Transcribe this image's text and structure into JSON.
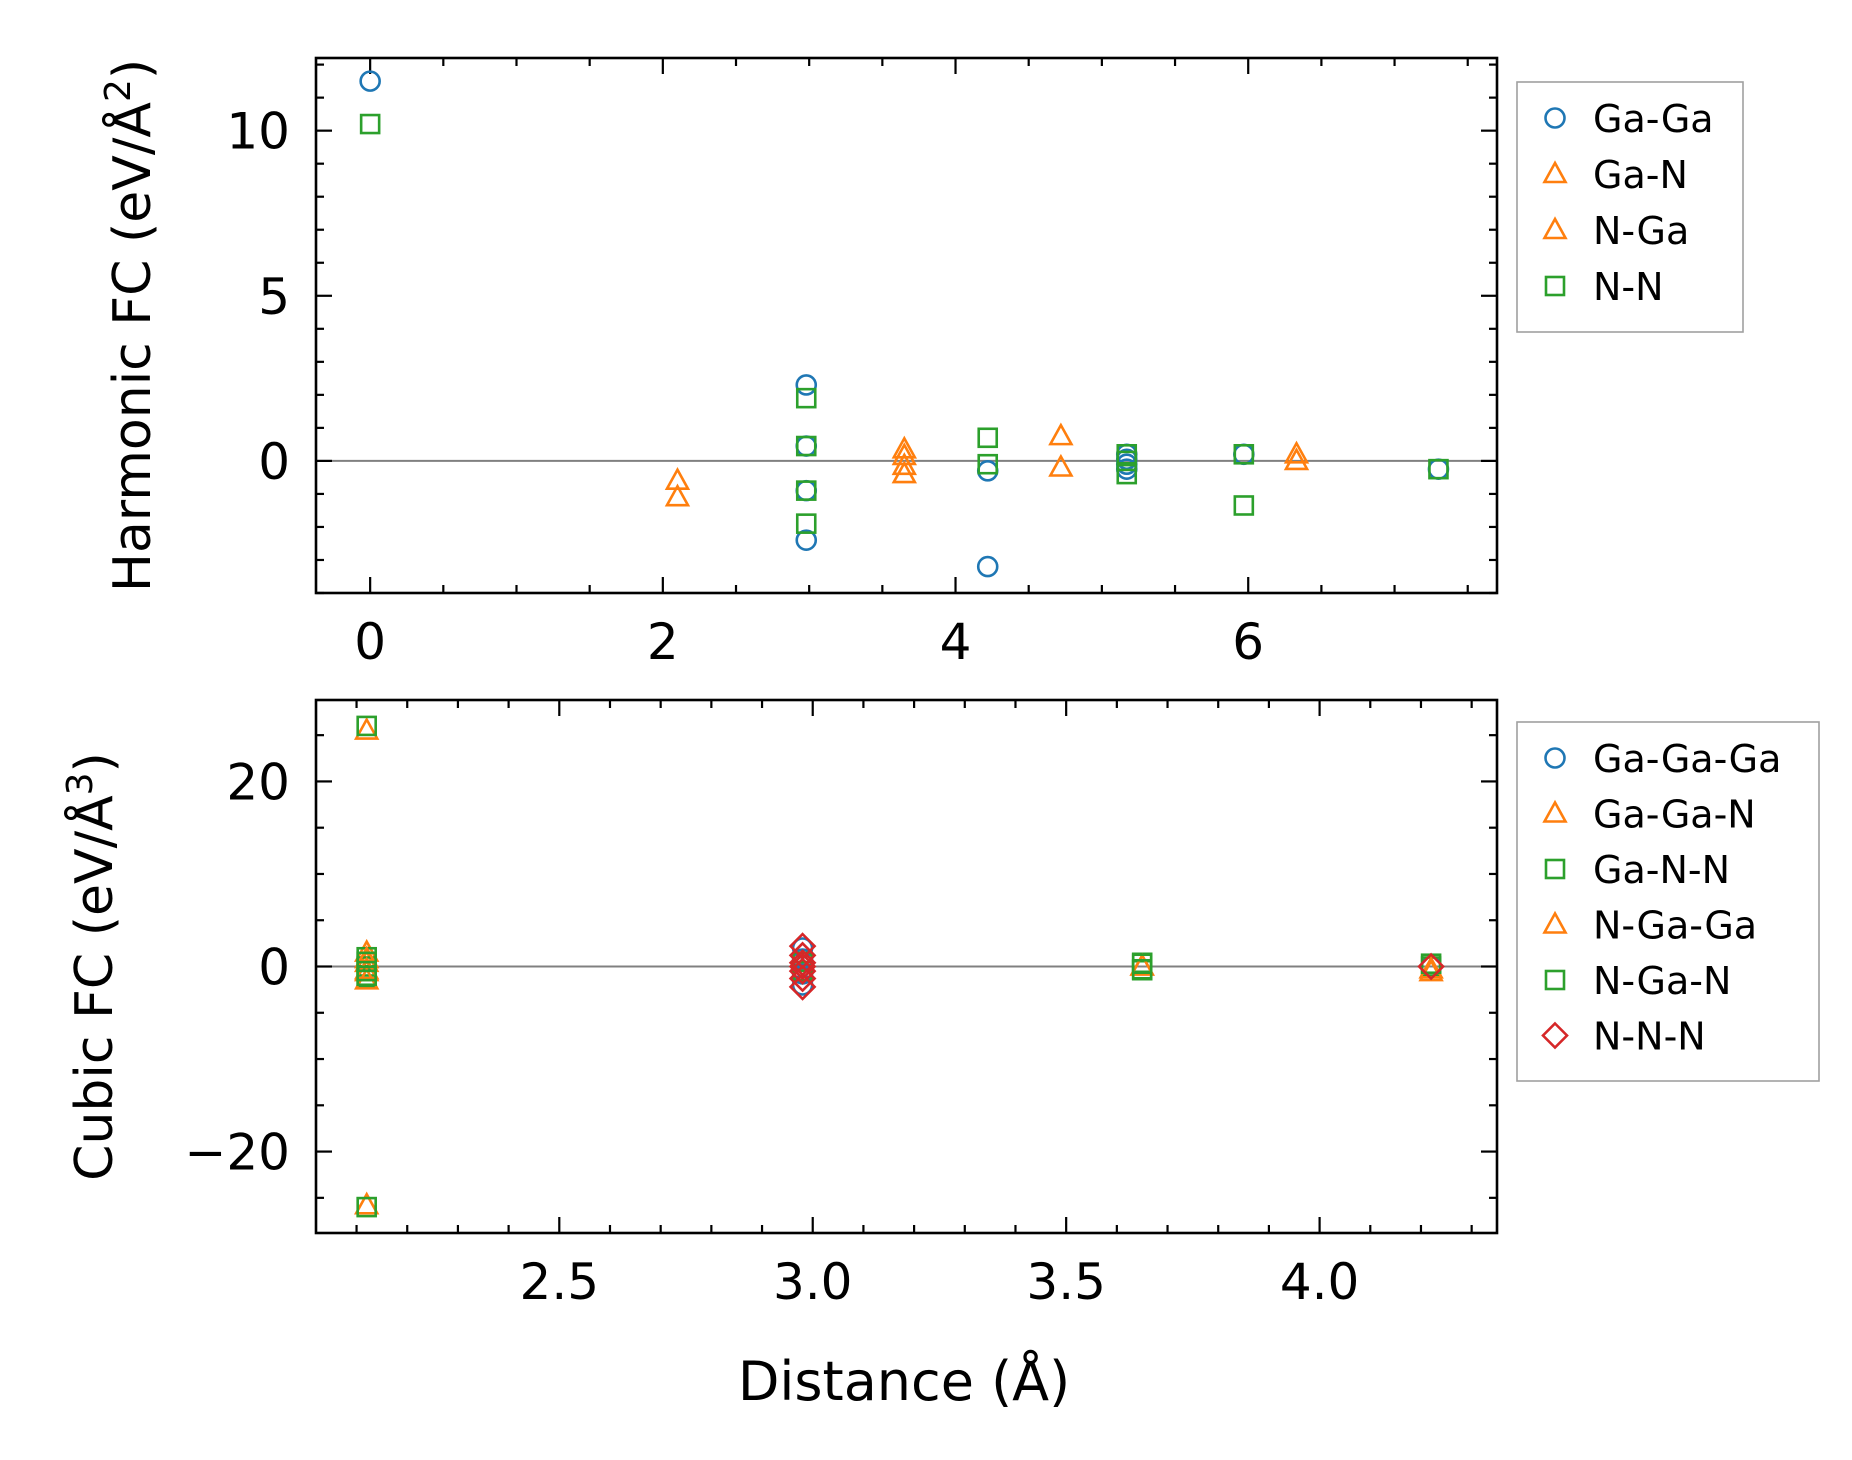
{
  "chart_data": [
    {
      "type": "scatter",
      "xlabel": "",
      "ylabel": "Harmonic FC (eV/Å²)",
      "ylabel_base": "Harmonic FC (eV/Å",
      "ylabel_sup": "2",
      "ylabel_close": ")",
      "xlim": [
        -0.37,
        7.7
      ],
      "ylim": [
        -4.0,
        12.2
      ],
      "xticks": [
        0,
        2,
        4,
        6
      ],
      "xtick_labels": [
        "0",
        "2",
        "4",
        "6"
      ],
      "yticks": [
        0,
        5,
        10
      ],
      "ytick_labels": [
        "0",
        "5",
        "10"
      ],
      "zero_line": true,
      "legend": "outside-right-top",
      "series": [
        {
          "name": "Ga-Ga",
          "marker": "circle",
          "color": "#1f77b4",
          "x": [
            0,
            2.98,
            2.98,
            2.98,
            2.98,
            4.22,
            4.22,
            5.17,
            5.17,
            5.17,
            5.17,
            5.97,
            7.3
          ],
          "y": [
            11.5,
            2.3,
            0.45,
            -0.9,
            -2.4,
            -0.3,
            -3.2,
            0.2,
            0.05,
            -0.1,
            -0.25,
            0.2,
            -0.25
          ]
        },
        {
          "name": "Ga-N",
          "marker": "triangle",
          "color": "#ff7f0e",
          "x": [
            2.1,
            3.65,
            3.65,
            4.72,
            6.33
          ],
          "y": [
            -0.6,
            0.35,
            -0.15,
            0.75,
            0.2
          ]
        },
        {
          "name": "N-Ga",
          "marker": "triangle",
          "color": "#ff7f0e",
          "x": [
            2.1,
            3.65,
            3.65,
            4.72,
            6.33
          ],
          "y": [
            -1.1,
            0.15,
            -0.4,
            -0.2,
            0.0
          ]
        },
        {
          "name": "N-N",
          "marker": "square",
          "color": "#2ca02c",
          "x": [
            0,
            2.98,
            2.98,
            2.98,
            2.98,
            4.22,
            4.22,
            5.17,
            5.17,
            5.17,
            5.97,
            5.97,
            7.3
          ],
          "y": [
            10.2,
            1.9,
            0.45,
            -0.9,
            -1.9,
            0.7,
            -0.1,
            0.2,
            0.0,
            -0.4,
            0.2,
            -1.35,
            -0.25
          ]
        }
      ]
    },
    {
      "type": "scatter",
      "xlabel": "Distance (Å)",
      "ylabel": "Cubic FC (eV/Å³)",
      "ylabel_base": "Cubic FC (eV/Å",
      "ylabel_sup": "3",
      "ylabel_close": ")",
      "xlim": [
        2.02,
        4.35
      ],
      "ylim": [
        -28.8,
        28.8
      ],
      "xticks": [
        2.5,
        3.0,
        3.5,
        4.0
      ],
      "xtick_labels": [
        "2.5",
        "3.0",
        "3.5",
        "4.0"
      ],
      "yticks": [
        -20,
        0,
        20
      ],
      "ytick_labels": [
        "−20",
        "0",
        "20"
      ],
      "zero_line": true,
      "legend": "outside-right-top",
      "series": [
        {
          "name": "Ga-Ga-Ga",
          "marker": "circle",
          "color": "#1f77b4",
          "x": [
            2.98,
            2.98,
            2.98,
            2.98,
            4.22
          ],
          "y": [
            2.0,
            0.8,
            -0.8,
            -2.0,
            0.0
          ]
        },
        {
          "name": "Ga-Ga-N",
          "marker": "triangle",
          "color": "#ff7f0e",
          "x": [
            2.12,
            2.12,
            2.12,
            2.12,
            2.12,
            3.65,
            4.22
          ],
          "y": [
            25.5,
            1.5,
            0.4,
            -0.6,
            -25.8,
            0.0,
            -0.6
          ]
        },
        {
          "name": "Ga-N-N",
          "marker": "square",
          "color": "#2ca02c",
          "x": [
            2.12,
            2.12,
            2.12,
            2.12,
            2.12,
            3.65,
            3.65,
            4.22
          ],
          "y": [
            26.0,
            1.0,
            0.0,
            -1.2,
            -26.0,
            0.4,
            -0.4,
            0.0
          ]
        },
        {
          "name": "N-Ga-Ga",
          "marker": "triangle",
          "color": "#ff7f0e",
          "x": [
            2.12,
            2.12,
            2.12,
            3.65,
            4.22
          ],
          "y": [
            0.8,
            -0.4,
            -1.5,
            0.0,
            -0.3
          ]
        },
        {
          "name": "N-Ga-N",
          "marker": "square",
          "color": "#2ca02c",
          "x": [
            2.12,
            2.12,
            2.12,
            2.98,
            2.98,
            3.65,
            3.65,
            4.22
          ],
          "y": [
            0.5,
            -0.5,
            -1.0,
            0.5,
            -0.5,
            0.3,
            -0.3,
            0.3
          ]
        },
        {
          "name": "N-N-N",
          "marker": "diamond",
          "color": "#d62728",
          "x": [
            2.98,
            2.98,
            2.98,
            2.98,
            2.98,
            2.98,
            2.98,
            4.22
          ],
          "y": [
            2.2,
            1.2,
            0.4,
            0.0,
            -0.5,
            -1.3,
            -2.2,
            0.0
          ]
        }
      ]
    }
  ]
}
